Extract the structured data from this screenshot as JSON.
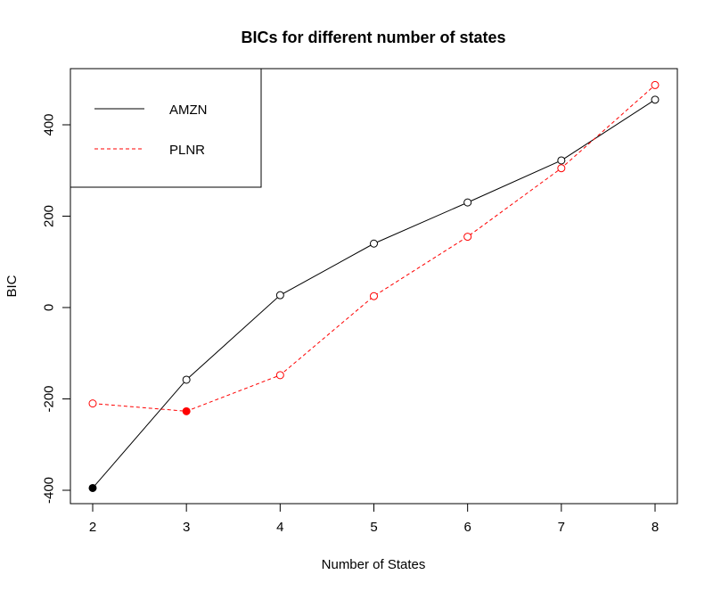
{
  "chart_data": {
    "type": "line",
    "title": "BICs for different number of states",
    "xlabel": "Number of States",
    "ylabel": "BIC",
    "x": [
      2,
      3,
      4,
      5,
      6,
      7,
      8
    ],
    "xlim": [
      2,
      8
    ],
    "ylim": [
      -400,
      480
    ],
    "xticks": [
      "2",
      "3",
      "4",
      "5",
      "6",
      "7",
      "8"
    ],
    "yticks": [
      "-400",
      "-200",
      "0",
      "200",
      "400"
    ],
    "ytick_values": [
      -400,
      -200,
      0,
      200,
      400
    ],
    "grid": false,
    "legend_position": "top-left",
    "series": [
      {
        "name": "AMZN",
        "color": "#000000",
        "line": "solid",
        "values": [
          -395,
          -158,
          27,
          140,
          230,
          322,
          455
        ],
        "highlight_index": 0
      },
      {
        "name": "PLNR",
        "color": "#ff0000",
        "line": "dashed",
        "values": [
          -210,
          -227,
          -148,
          25,
          155,
          305,
          487
        ],
        "highlight_index": 1
      }
    ]
  }
}
